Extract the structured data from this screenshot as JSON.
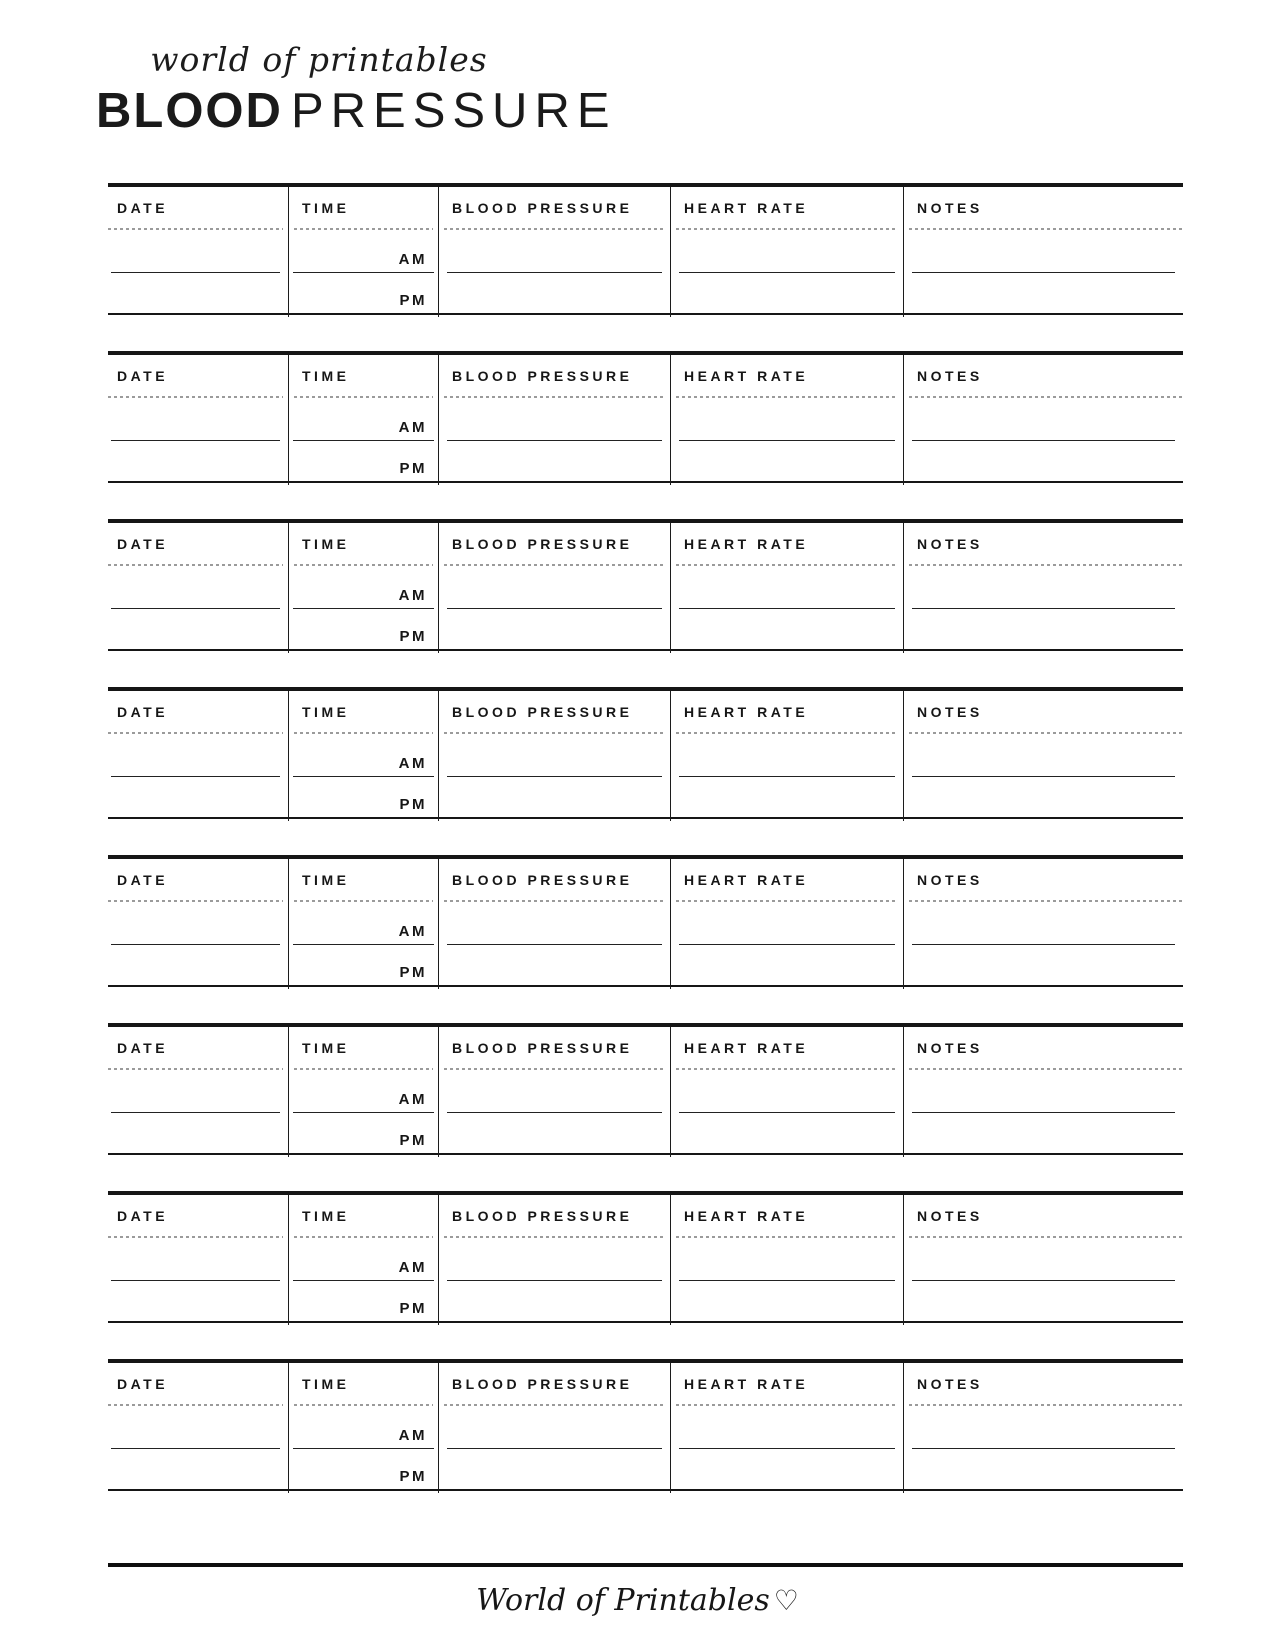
{
  "header": {
    "brand_script": "world of printables",
    "title_bold": "BLOOD",
    "title_light": "PRESSURE"
  },
  "log_block": {
    "count": 8,
    "columns": [
      "DATE",
      "TIME",
      "BLOOD PRESSURE",
      "HEART RATE",
      "NOTES"
    ],
    "time_slots": [
      "AM",
      "PM"
    ]
  },
  "footer": {
    "brand": "World of Printables",
    "heart_icon": "♡"
  },
  "colors": {
    "ink": "#1a1a1a",
    "dotted_divider": "#9b9b9b"
  }
}
